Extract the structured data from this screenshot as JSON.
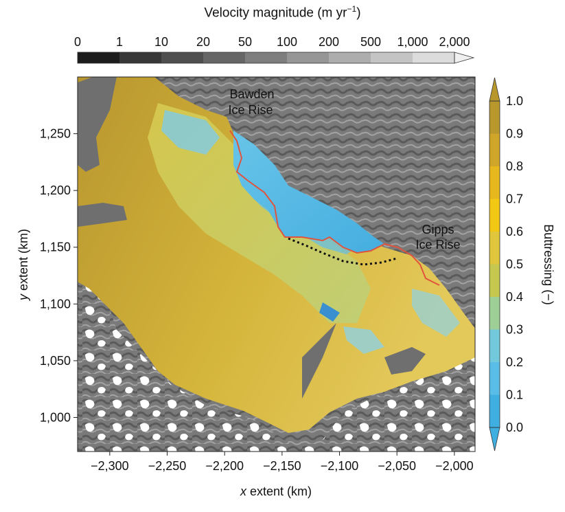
{
  "chart_data": {
    "type": "heatmap",
    "xlabel_var": "x",
    "xlabel_rest": " extent (km)",
    "ylabel_var": "y",
    "ylabel_rest": " extent (km)",
    "x_ticks": [
      -2300,
      -2250,
      -2200,
      -2150,
      -2100,
      -2050,
      -2000
    ],
    "x_tick_labels": [
      "−2,300",
      "−2,250",
      "−2,200",
      "−2,150",
      "−2,100",
      "−2,050",
      "−2,000"
    ],
    "xlim": [
      -2328,
      -1982
    ],
    "y_ticks": [
      1250,
      1200,
      1150,
      1100,
      1050,
      1000
    ],
    "y_tick_labels": [
      "1,250",
      "1,200",
      "1,150",
      "1,100",
      "1,050",
      "1,000"
    ],
    "ylim": [
      970,
      1300
    ],
    "velocity_colorbar": {
      "title_main": "Velocity magnitude (m yr",
      "title_sup": "−1",
      "title_end": ")",
      "tick_labels": [
        "0",
        "1",
        "10",
        "20",
        "50",
        "100",
        "200",
        "500",
        "1,000",
        "2,000"
      ],
      "colors": [
        "#1c1c1c",
        "#383838",
        "#4f4f4f",
        "#666666",
        "#7e7e7e",
        "#969696",
        "#adadad",
        "#c4c4c4",
        "#dcdcdc",
        "#f0f0f0"
      ]
    },
    "buttressing_colorbar": {
      "label": "Buttressing (−)",
      "tick_values": [
        1.0,
        0.9,
        0.8,
        0.7,
        0.6,
        0.5,
        0.4,
        0.3,
        0.2,
        0.1,
        0.0
      ],
      "tick_labels": [
        "1.0",
        "0.9",
        "0.8",
        "0.7",
        "0.6",
        "0.5",
        "0.4",
        "0.3",
        "0.2",
        "0.1",
        "0.0"
      ],
      "colors": [
        "#b8972c",
        "#cfa52a",
        "#e6b81e",
        "#f3c815",
        "#e0c63c",
        "#c5c74f",
        "#9ecf97",
        "#72c9dc",
        "#59bde8",
        "#3faee0"
      ]
    },
    "annotations": [
      {
        "line1": "Bawden",
        "line2": "Ice Rise"
      },
      {
        "line1": "Gipps",
        "line2": "Ice Rise"
      }
    ],
    "colors": {
      "grounding_line": "#e0533c",
      "dotted_line": "#111111",
      "rock": "#ffffff",
      "grounded_ice": "#777777",
      "high_buttressing": "#b8962f",
      "low_buttressing": "#56b9e3"
    }
  }
}
